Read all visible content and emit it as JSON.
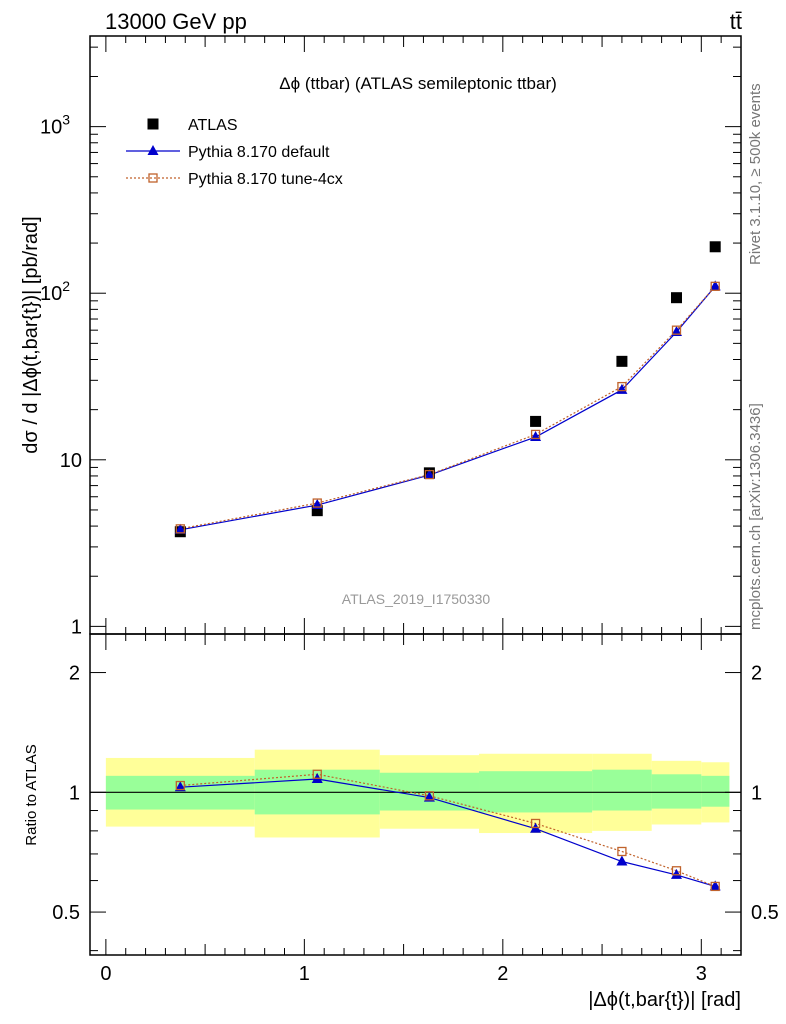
{
  "header": {
    "energy_label": "13000 GeV pp",
    "process_label": "tt̄"
  },
  "side_labels": {
    "rivet": "Rivet 3.1.10, ≥ 500k events",
    "mcplots": "mcplots.cern.ch [arXiv:1306.3436]"
  },
  "chart_data": [
    {
      "type": "scatter",
      "title": "Δϕ (ttbar) (ATLAS semileptonic ttbar)",
      "watermark": "ATLAS_2019_I1750330",
      "ylabel": "dσ / d |Δϕ(t,bar{t})| [pb/rad]",
      "yscale": "log",
      "ylim": [
        0.9,
        3500
      ],
      "xlim": [
        -0.08,
        3.2
      ],
      "legend_position": "top-left",
      "y_tick_labels": [
        "1",
        "10",
        "10^2",
        "10^3"
      ],
      "bin_edges": [
        0,
        0.75,
        1.38,
        1.88,
        2.45,
        2.75,
        3.0,
        3.1416
      ],
      "x": [
        0.375,
        1.065,
        1.63,
        2.165,
        2.6,
        2.875,
        3.07
      ],
      "series": [
        {
          "name": "ATLAS",
          "values": [
            3.7,
            4.95,
            8.35,
            17.0,
            39.0,
            94.0,
            190.0
          ],
          "color": "#000000",
          "marker": "square"
        },
        {
          "name": "Pythia 8.170 default",
          "values": [
            3.8,
            5.35,
            8.1,
            13.7,
            26.3,
            58.5,
            110.0
          ],
          "color": "#0000cc",
          "marker": "triangle"
        },
        {
          "name": "Pythia 8.170 tune-4cx",
          "values": [
            3.85,
            5.5,
            8.15,
            14.2,
            27.5,
            60.0,
            110.0
          ],
          "color": "#c0622b",
          "marker": "open-square"
        }
      ]
    },
    {
      "type": "line",
      "xlabel": "|Δϕ(t,bar{t})| [rad]",
      "ylabel": "Ratio to ATLAS",
      "yscale": "log",
      "ylim": [
        0.39,
        2.5
      ],
      "x_tick_labels": [
        "0",
        "1",
        "2",
        "3"
      ],
      "y_tick_labels": [
        "0.5",
        "1",
        "2"
      ],
      "reference_value": 1,
      "uncertainty_bands": {
        "inner_color": "#99ff99",
        "outer_color": "#ffff99",
        "inner": [
          [
            0.905,
            1.1
          ],
          [
            0.88,
            1.14
          ],
          [
            0.9,
            1.12
          ],
          [
            0.89,
            1.13
          ],
          [
            0.9,
            1.14
          ],
          [
            0.91,
            1.11
          ],
          [
            0.92,
            1.1
          ]
        ],
        "outer": [
          [
            0.82,
            1.22
          ],
          [
            0.77,
            1.28
          ],
          [
            0.81,
            1.24
          ],
          [
            0.79,
            1.25
          ],
          [
            0.8,
            1.25
          ],
          [
            0.83,
            1.2
          ],
          [
            0.84,
            1.19
          ]
        ]
      },
      "x": [
        0.375,
        1.065,
        1.63,
        2.165,
        2.6,
        2.875,
        3.07
      ],
      "series": [
        {
          "name": "Pythia 8.170 default",
          "values": [
            1.03,
            1.08,
            0.97,
            0.81,
            0.67,
            0.62,
            0.58
          ],
          "color": "#0000cc",
          "marker": "triangle"
        },
        {
          "name": "Pythia 8.170 tune-4cx",
          "values": [
            1.04,
            1.11,
            0.98,
            0.835,
            0.71,
            0.635,
            0.58
          ],
          "color": "#c0622b",
          "marker": "open-square"
        }
      ]
    }
  ]
}
